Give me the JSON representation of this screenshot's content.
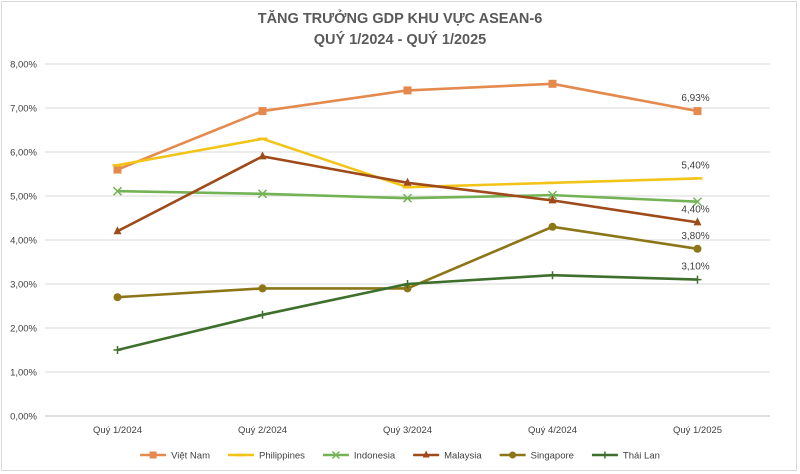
{
  "chart_data": {
    "type": "line",
    "title": "TĂNG TRƯỞNG GDP KHU VỰC ASEAN-6",
    "subtitle": "QUÝ 1/2024 - QUÝ 1/2025",
    "categories": [
      "Quý 1/2024",
      "Quý 2/2024",
      "Quý 3/2024",
      "Quý 4/2024",
      "Quý 1/2025"
    ],
    "y_ticks": [
      "0,00%",
      "1,00%",
      "2,00%",
      "3,00%",
      "4,00%",
      "5,00%",
      "6,00%",
      "7,00%",
      "8,00%"
    ],
    "ylim": [
      0,
      8
    ],
    "grid": true,
    "legend_position": "bottom",
    "series": [
      {
        "name": "Việt Nam",
        "values": [
          5.6,
          6.93,
          7.4,
          7.55,
          6.93
        ],
        "color": "#E58A4E",
        "marker": "square",
        "end_label": "6,93%"
      },
      {
        "name": "Philippines",
        "values": [
          5.7,
          6.3,
          5.2,
          5.3,
          5.4
        ],
        "color": "#F2C418",
        "marker": "dash",
        "end_label": "5,40%"
      },
      {
        "name": "Indonesia",
        "values": [
          5.11,
          5.05,
          4.95,
          5.02,
          4.87
        ],
        "color": "#73B355",
        "marker": "x",
        "end_label": ""
      },
      {
        "name": "Malaysia",
        "values": [
          4.2,
          5.9,
          5.3,
          4.9,
          4.4
        ],
        "color": "#9E4A1A",
        "marker": "triangle",
        "end_label": "4,40%"
      },
      {
        "name": "Singapore",
        "values": [
          2.7,
          2.9,
          2.9,
          4.3,
          3.8
        ],
        "color": "#8C7617",
        "marker": "circle",
        "end_label": "3,80%"
      },
      {
        "name": "Thái Lan",
        "values": [
          1.5,
          2.3,
          3.0,
          3.2,
          3.1
        ],
        "color": "#3F6F2C",
        "marker": "plus",
        "end_label": "3,10%"
      }
    ]
  }
}
